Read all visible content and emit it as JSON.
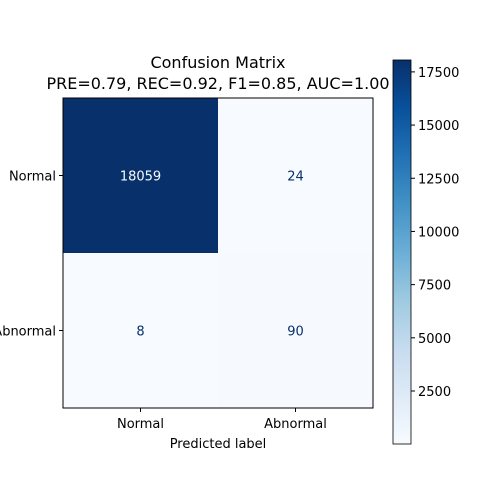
{
  "chart_data": {
    "type": "heatmap",
    "title": "Confusion Matrix",
    "subtitle": "PRE=0.79, REC=0.92, F1=0.85, AUC=1.00",
    "xlabel": "Predicted label",
    "ylabel": "",
    "x_categories": [
      "Normal",
      "Abnormal"
    ],
    "y_categories": [
      "Normal",
      "Abnormal"
    ],
    "matrix": [
      [
        18059,
        24
      ],
      [
        8,
        90
      ]
    ],
    "matrix_labels": [
      [
        "18059",
        "24"
      ],
      [
        "8",
        "90"
      ]
    ],
    "colormap": "Blues",
    "colorbar": {
      "range": [
        8,
        18059
      ],
      "ticks": [
        2500,
        5000,
        7500,
        10000,
        12500,
        15000,
        17500
      ],
      "tick_labels": [
        "2500",
        "5000",
        "7500",
        "10000",
        "12500",
        "15000",
        "17500"
      ]
    },
    "grid": false,
    "colors": {
      "low": "#f7fbff",
      "high": "#08306b",
      "text_light": "#f7fbff",
      "text_dark": "#08306b"
    }
  }
}
